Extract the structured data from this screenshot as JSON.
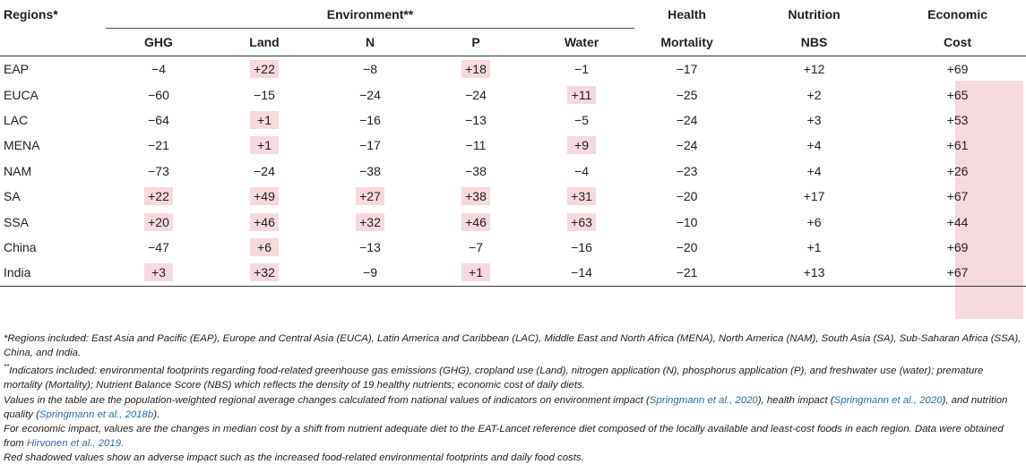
{
  "headers": {
    "regions": "Regions*",
    "environment": "Environment**",
    "health_top": "Health",
    "nutrition_top": "Nutrition",
    "economic_top": "Economic",
    "ghg": "GHG",
    "land": "Land",
    "n": "N",
    "p": "P",
    "water": "Water",
    "health_sub": "Mortality",
    "nutrition_sub": "NBS",
    "economic_sub": "Cost"
  },
  "rows": [
    {
      "region": "EAP",
      "ghg": "−4",
      "land": "+22",
      "n": "−8",
      "p": "+18",
      "water": "−1",
      "mortality": "−17",
      "nbs": "+12",
      "cost": "+69"
    },
    {
      "region": "EUCA",
      "ghg": "−60",
      "land": "−15",
      "n": "−24",
      "p": "−24",
      "water": "+11",
      "mortality": "−25",
      "nbs": "+2",
      "cost": "+65"
    },
    {
      "region": "LAC",
      "ghg": "−64",
      "land": "+1",
      "n": "−16",
      "p": "−13",
      "water": "−5",
      "mortality": "−24",
      "nbs": "+3",
      "cost": "+53"
    },
    {
      "region": "MENA",
      "ghg": "−21",
      "land": "+1",
      "n": "−17",
      "p": "−11",
      "water": "+9",
      "mortality": "−24",
      "nbs": "+4",
      "cost": "+61"
    },
    {
      "region": "NAM",
      "ghg": "−73",
      "land": "−24",
      "n": "−38",
      "p": "−38",
      "water": "−4",
      "mortality": "−23",
      "nbs": "+4",
      "cost": "+26"
    },
    {
      "region": "SA",
      "ghg": "+22",
      "land": "+49",
      "n": "+27",
      "p": "+38",
      "water": "+31",
      "mortality": "−20",
      "nbs": "+17",
      "cost": "+67"
    },
    {
      "region": "SSA",
      "ghg": "+20",
      "land": "+46",
      "n": "+32",
      "p": "+46",
      "water": "+63",
      "mortality": "−10",
      "nbs": "+6",
      "cost": "+44"
    },
    {
      "region": "China",
      "ghg": "−47",
      "land": "+6",
      "n": "−13",
      "p": "−7",
      "water": "−16",
      "mortality": "−20",
      "nbs": "+1",
      "cost": "+69"
    },
    {
      "region": "India",
      "ghg": "+3",
      "land": "+32",
      "n": "−9",
      "p": "+1",
      "water": "−14",
      "mortality": "−21",
      "nbs": "+13",
      "cost": "+67"
    }
  ],
  "notes": {
    "n1": "*Regions included: East Asia and Pacific (EAP), Europe and Central Asia (EUCA), Latin America and Caribbean (LAC), Middle East and North Africa (MENA), North America (NAM), South Asia (SA), Sub-Saharan Africa (SSA), China, and India.",
    "n2_mark": "**",
    "n2": "Indicators included: environmental footprints regarding food-related greenhouse gas emissions (GHG), cropland use (Land), nitrogen application (N), phosphorus application (P), and freshwater use (water); premature mortality (Mortality); Nutrient Balance Score (NBS) which reflects the density of 19 healthy nutrients; economic cost of daily diets.",
    "n3a": "Values in the table are the population-weighted regional average changes calculated from national values of indicators on environment impact (",
    "n3_ref1": "Springmann et al., 2020",
    "n3b": "), health impact (",
    "n3_ref2": "Springmann et al., 2020",
    "n3c": "), and nutrition quality (",
    "n3_ref3": "Springmann et al., 2018b",
    "n3d": ").",
    "n4a": "For economic impact, values are the changes in median cost by a shift from nutrient adequate diet to the EAT-Lancet reference diet composed of the locally available and least-cost foods in each region. Data were obtained from ",
    "n4_ref": "Hirvonen et al., 2019",
    "n4b": ".",
    "n5": "Red shadowed values show an adverse impact such as the increased food-related environmental footprints and daily food costs."
  }
}
